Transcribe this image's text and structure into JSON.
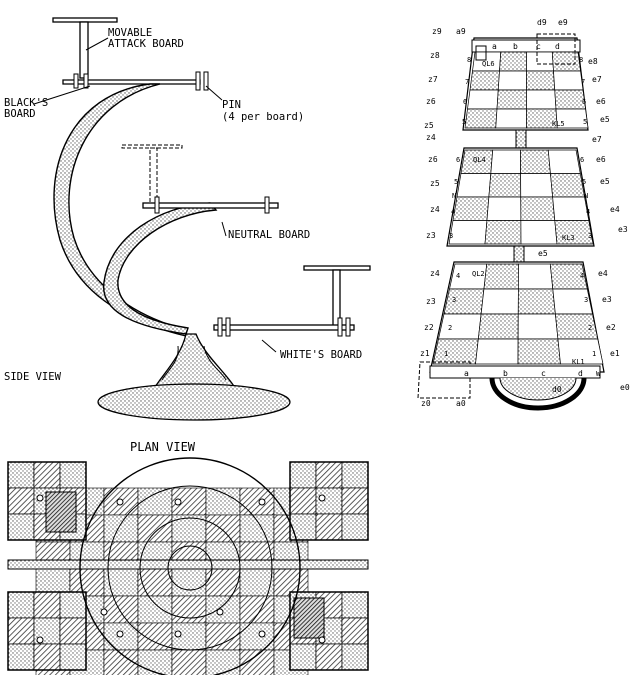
{
  "side_view": {
    "movable_attack_board_line1": "MOVABLE",
    "movable_attack_board_line2": "ATTACK BOARD",
    "blacks_board_line1": "BLACK'S",
    "blacks_board_line2": "BOARD",
    "pin_line1": "PIN",
    "pin_line2": "(4 per board)",
    "neutral_board": "NEUTRAL BOARD",
    "whites_board": "WHITE'S BOARD",
    "caption": "SIDE VIEW"
  },
  "plan_view": {
    "caption": "PLAN VIEW"
  },
  "board_diagram": {
    "top_labels": [
      "z9",
      "a9",
      "d9",
      "e9"
    ],
    "top_row": [
      "a",
      "b",
      "c",
      "d"
    ],
    "upper_level_left": [
      "z8",
      "z7",
      "z6",
      "z5"
    ],
    "upper_level_right": [
      "e8",
      "e7",
      "e6",
      "e5"
    ],
    "upper_rank_left": [
      "8",
      "7",
      "6",
      "5"
    ],
    "upper_rank_right": [
      "8",
      "7",
      "6",
      "5"
    ],
    "upper_ql": "QL6",
    "upper_kl": "KL5",
    "mid_level_left": [
      "z4",
      "z6",
      "z5",
      "z4",
      "z3"
    ],
    "mid_level_right": [
      "e7",
      "e6",
      "e5",
      "e4",
      "e3"
    ],
    "mid_rank_left": [
      "6",
      "5",
      "N",
      "4",
      "3"
    ],
    "mid_rank_right": [
      "6",
      "5",
      "N",
      "4",
      "3"
    ],
    "mid_ql": "QL4",
    "mid_kl": "KL3",
    "mid_bottom_label": "e5",
    "low_level_left": [
      "z4",
      "z3",
      "z2",
      "z1"
    ],
    "low_level_right": [
      "e4",
      "e3",
      "e2",
      "e1"
    ],
    "low_rank_left": [
      "4",
      "3",
      "2",
      "1"
    ],
    "low_rank_right": [
      "4",
      "3",
      "2",
      "1"
    ],
    "low_ql": "QL2",
    "low_kl": "KL1",
    "low_w": "W",
    "bottom_files": [
      "a",
      "b",
      "c",
      "d"
    ],
    "bottom_labels": [
      "z0",
      "a0",
      "d0",
      "e0"
    ]
  }
}
